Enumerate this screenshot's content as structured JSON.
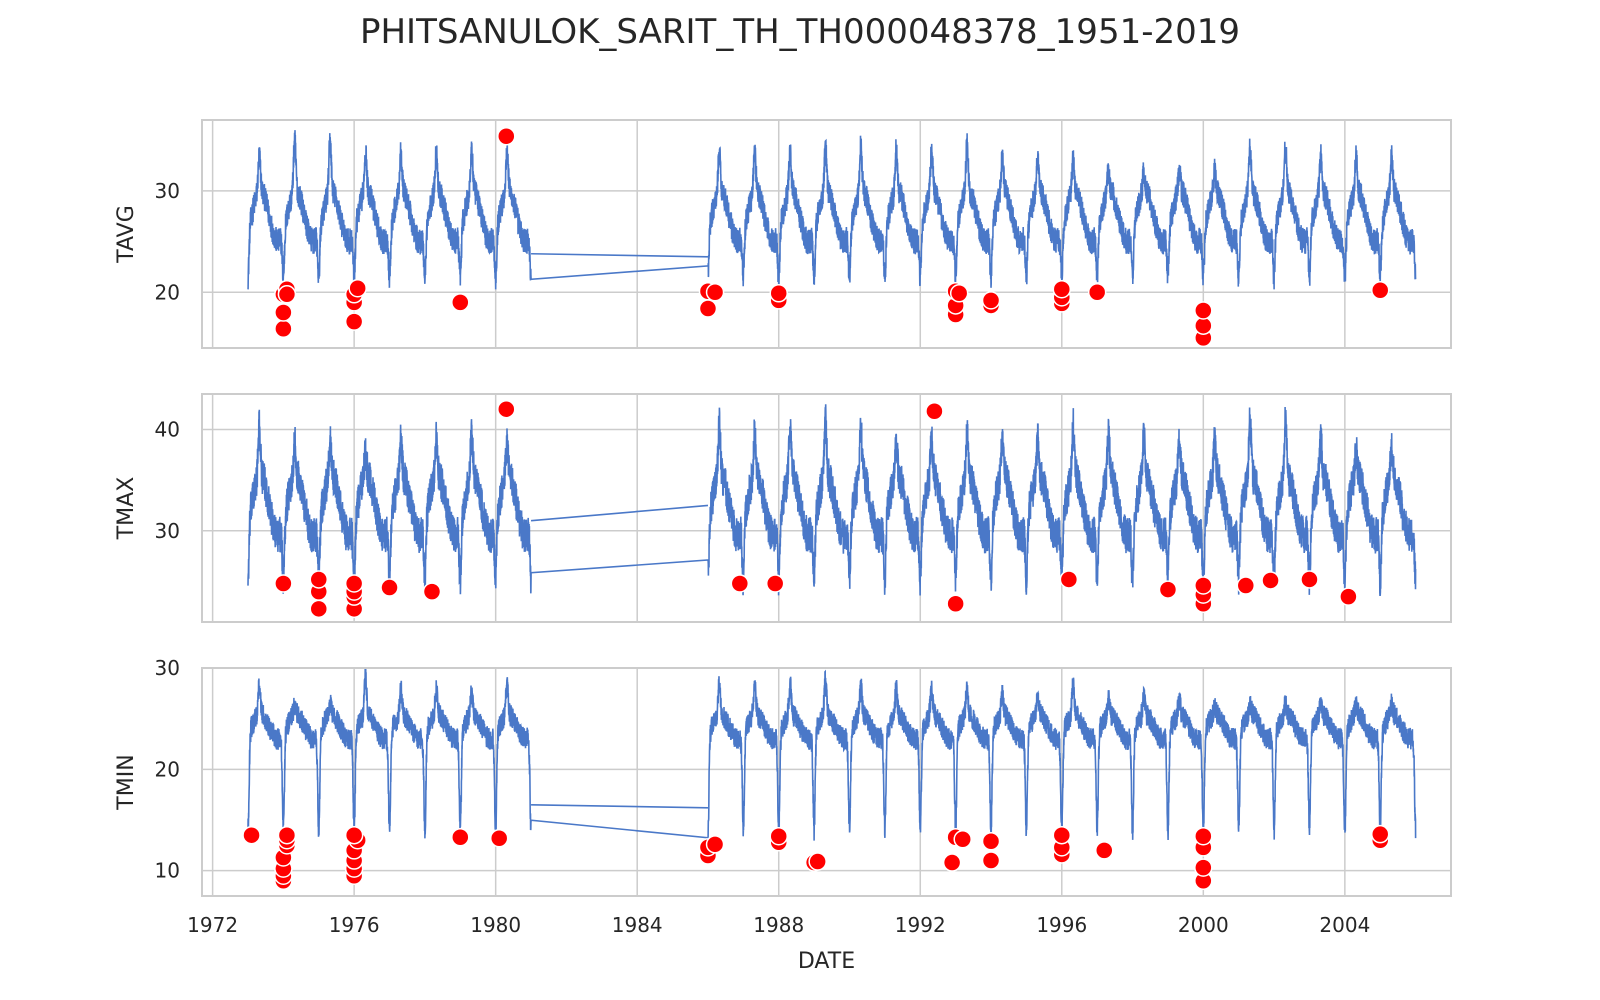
{
  "chart_data": {
    "type": "line",
    "title": "PHITSANULOK_SARIT_TH_TH000048378_1951-2019",
    "xlabel": "DATE",
    "x_range": [
      1971.7,
      2007.0
    ],
    "x_ticks": [
      "1972",
      "1976",
      "1980",
      "1984",
      "1988",
      "1992",
      "1996",
      "2000",
      "2004"
    ],
    "grid": true,
    "line_color": "#4a78c8",
    "outlier_color": "#ff0000",
    "data_start": 1973.0,
    "gap": [
      1981.0,
      1986.0
    ],
    "data_end": 2006.0,
    "panels": [
      {
        "ylabel": "TAVG",
        "ylim": [
          14.5,
          37
        ],
        "y_ticks": [
          20,
          30
        ],
        "series": {
          "base": 27.5,
          "amplitude": 2.5,
          "noise": 1.3,
          "dip_depth": 4.5,
          "gap_value": 23.8,
          "seasonal_peaks": [
            33.5,
            35,
            34,
            34,
            34,
            34,
            36,
            33.8,
            34.3,
            34,
            34,
            34.5,
            34.5,
            34,
            34.5,
            33.5,
            33,
            32,
            32,
            32,
            34.5,
            33.5,
            33.5
          ]
        },
        "outliers": [
          [
            1974.0,
            16.4
          ],
          [
            1974.0,
            18.0
          ],
          [
            1974.0,
            19.8
          ],
          [
            1974.1,
            20.3
          ],
          [
            1974.1,
            19.8
          ],
          [
            1976.0,
            17.1
          ],
          [
            1976.0,
            19.0
          ],
          [
            1976.0,
            19.8
          ],
          [
            1976.1,
            20.4
          ],
          [
            1979.0,
            19.0
          ],
          [
            1980.3,
            35.4
          ],
          [
            1986.0,
            18.4
          ],
          [
            1986.0,
            20.1
          ],
          [
            1986.2,
            20.0
          ],
          [
            1988.0,
            19.2
          ],
          [
            1988.0,
            19.9
          ],
          [
            1993.0,
            17.8
          ],
          [
            1993.0,
            18.7
          ],
          [
            1993.0,
            20.1
          ],
          [
            1993.1,
            19.9
          ],
          [
            1994.0,
            18.7
          ],
          [
            1994.0,
            19.2
          ],
          [
            1996.0,
            18.9
          ],
          [
            1996.0,
            19.5
          ],
          [
            1996.0,
            20.3
          ],
          [
            1997.0,
            20.0
          ],
          [
            2000.0,
            15.5
          ],
          [
            2000.0,
            16.7
          ],
          [
            2000.0,
            18.2
          ],
          [
            2005.0,
            20.2
          ]
        ]
      },
      {
        "ylabel": "TMAX",
        "ylim": [
          21,
          43.5
        ],
        "y_ticks": [
          30,
          40
        ],
        "series": {
          "base": 32.5,
          "amplitude": 3.0,
          "noise": 1.8,
          "dip_depth": 5.5,
          "gap_value": 31.0,
          "seasonal_peaks": [
            40.3,
            39,
            37.5,
            39,
            39.5,
            38.5,
            40,
            41.8,
            40.5,
            40.5,
            40,
            41,
            40,
            39,
            39.5,
            39,
            40.5,
            39.5,
            39,
            39,
            41,
            39,
            38
          ]
        },
        "outliers": [
          [
            1974.0,
            24.8
          ],
          [
            1975.0,
            22.3
          ],
          [
            1975.0,
            24.0
          ],
          [
            1975.0,
            25.2
          ],
          [
            1976.0,
            22.3
          ],
          [
            1976.0,
            23.5
          ],
          [
            1976.0,
            24.0
          ],
          [
            1976.0,
            24.8
          ],
          [
            1977.0,
            24.4
          ],
          [
            1978.2,
            24.0
          ],
          [
            1980.3,
            42.0
          ],
          [
            1986.9,
            24.8
          ],
          [
            1987.9,
            24.8
          ],
          [
            1992.4,
            41.8
          ],
          [
            1993.0,
            22.8
          ],
          [
            1996.2,
            25.2
          ],
          [
            1999.0,
            24.2
          ],
          [
            2000.0,
            22.8
          ],
          [
            2000.0,
            23.7
          ],
          [
            2000.0,
            24.6
          ],
          [
            2001.2,
            24.6
          ],
          [
            2001.9,
            25.1
          ],
          [
            2003.0,
            25.2
          ],
          [
            2004.1,
            23.5
          ]
        ]
      },
      {
        "ylabel": "TMIN",
        "ylim": [
          7.5,
          30
        ],
        "y_ticks": [
          10,
          20,
          30
        ],
        "series": {
          "base": 24.2,
          "amplitude": 1.2,
          "noise": 1.1,
          "dip_depth": 9.5,
          "gap_value": 16.5,
          "seasonal_peaks": [
            28.4,
            26.5,
            29,
            28,
            27.5,
            28.5,
            28.5,
            28.5,
            28.9,
            28.5,
            28.5,
            28.8,
            28.2,
            28,
            28,
            27.5,
            28.5,
            27,
            27,
            26,
            26.5,
            26.5,
            26.5
          ]
        },
        "outliers": [
          [
            1973.1,
            13.5
          ],
          [
            1974.0,
            9.0
          ],
          [
            1974.0,
            9.5
          ],
          [
            1974.0,
            10.2
          ],
          [
            1974.0,
            11.3
          ],
          [
            1974.1,
            12.5
          ],
          [
            1974.1,
            13.0
          ],
          [
            1974.1,
            13.5
          ],
          [
            1976.0,
            9.5
          ],
          [
            1976.0,
            10.2
          ],
          [
            1976.0,
            11.0
          ],
          [
            1976.0,
            12.0
          ],
          [
            1976.1,
            13.0
          ],
          [
            1976.0,
            13.5
          ],
          [
            1979.0,
            13.3
          ],
          [
            1980.1,
            13.2
          ],
          [
            1986.0,
            11.5
          ],
          [
            1986.0,
            12.3
          ],
          [
            1986.2,
            12.6
          ],
          [
            1988.0,
            12.8
          ],
          [
            1988.0,
            13.4
          ],
          [
            1989.0,
            10.8
          ],
          [
            1989.1,
            10.9
          ],
          [
            1992.9,
            10.8
          ],
          [
            1993.0,
            13.3
          ],
          [
            1993.2,
            13.1
          ],
          [
            1994.0,
            11.0
          ],
          [
            1994.0,
            12.9
          ],
          [
            1996.0,
            11.6
          ],
          [
            1996.0,
            12.3
          ],
          [
            1996.0,
            13.5
          ],
          [
            1997.2,
            12.0
          ],
          [
            2000.0,
            9.0
          ],
          [
            2000.0,
            10.3
          ],
          [
            2000.0,
            12.3
          ],
          [
            2000.0,
            13.4
          ],
          [
            2005.0,
            13.0
          ],
          [
            2005.0,
            13.6
          ]
        ]
      }
    ]
  }
}
